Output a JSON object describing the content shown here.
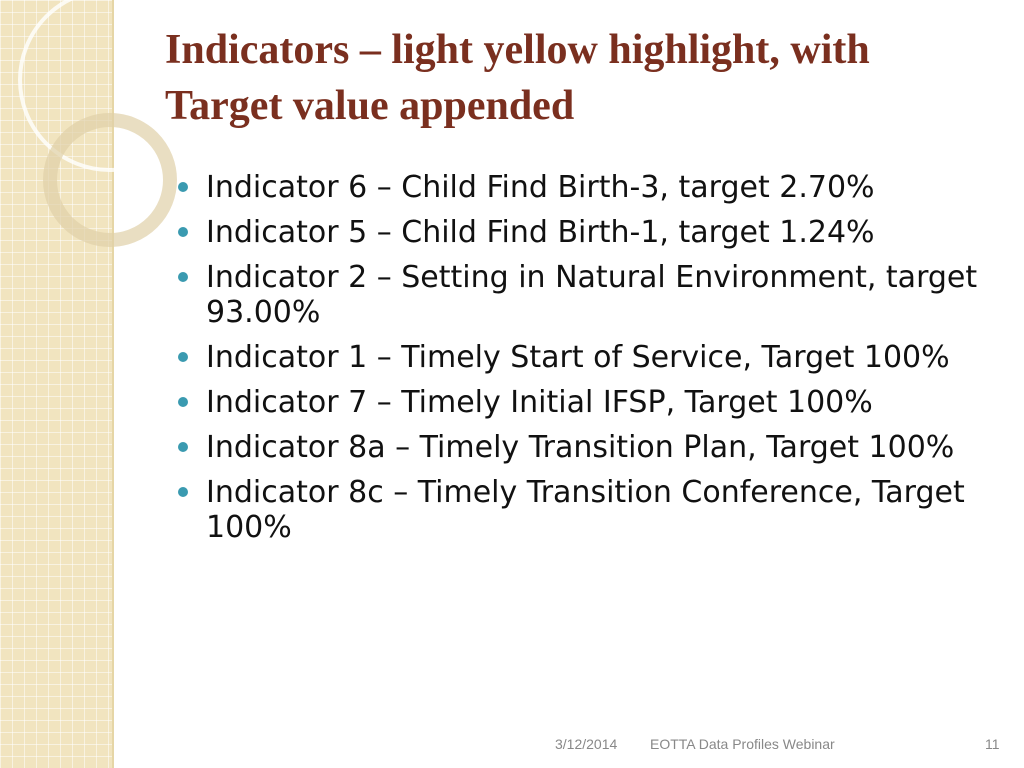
{
  "slide": {
    "title": "Indicators – light yellow highlight, with Target value appended",
    "bullets": [
      "Indicator 6 – Child Find Birth-3, target 2.70%",
      "Indicator 5 – Child Find Birth-1, target 1.24%",
      "Indicator 2 – Setting in Natural Environment, target 93.00%",
      "Indicator 1 – Timely Start of Service, Target 100%",
      "Indicator 7 – Timely Initial IFSP, Target 100%",
      "Indicator 8a – Timely Transition Plan, Target 100%",
      "Indicator 8c – Timely Transition Conference, Target 100%"
    ],
    "footer": {
      "date": "3/12/2014",
      "text": "EOTTA Data Profiles Webinar",
      "page": "11"
    }
  }
}
